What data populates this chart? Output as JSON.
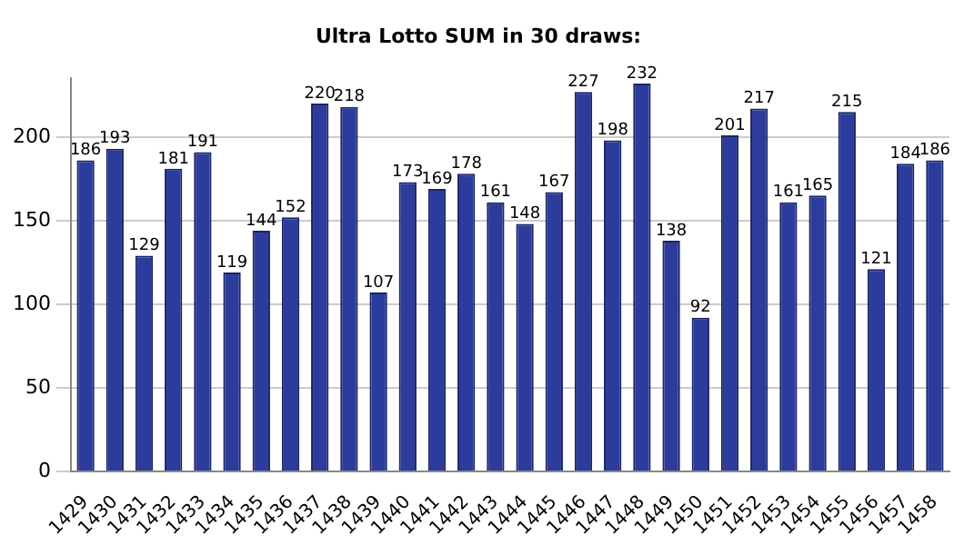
{
  "chart_data": {
    "type": "bar",
    "title": "Ultra Lotto SUM in 30 draws:",
    "categories": [
      "1429",
      "1430",
      "1431",
      "1432",
      "1433",
      "1434",
      "1435",
      "1436",
      "1437",
      "1438",
      "1439",
      "1440",
      "1441",
      "1442",
      "1443",
      "1444",
      "1445",
      "1446",
      "1447",
      "1448",
      "1449",
      "1450",
      "1451",
      "1452",
      "1453",
      "1454",
      "1455",
      "1456",
      "1457",
      "1458"
    ],
    "values": [
      186,
      193,
      129,
      181,
      191,
      119,
      144,
      152,
      220,
      218,
      107,
      173,
      169,
      178,
      161,
      148,
      167,
      227,
      198,
      232,
      138,
      92,
      201,
      217,
      161,
      165,
      215,
      121,
      184,
      186
    ],
    "color": "#2b3c9c",
    "ylim": [
      0,
      235
    ],
    "yticks": [
      0,
      50,
      100,
      150,
      200
    ],
    "grid": "y",
    "data_labels": true
  }
}
